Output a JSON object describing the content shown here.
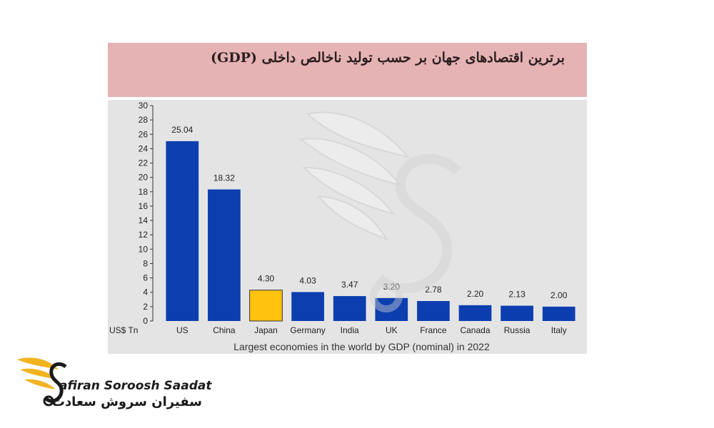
{
  "title": "برترین اقتصادهای جهان بر حسب تولید ناخالص داخلی (GDP)",
  "brand": {
    "name_en": "afiran Soroosh Saadat",
    "name_fa": "سفیران سروش سعادت"
  },
  "colors": {
    "bar": "#0c3eb0",
    "highlight": "#ffc20e",
    "title_band": "#e6b3b5",
    "plot_bg": "#e4e4e4",
    "logo_gold": "#f2b321"
  },
  "chart_data": {
    "type": "bar",
    "categories": [
      "US",
      "China",
      "Japan",
      "Germany",
      "India",
      "UK",
      "France",
      "Canada",
      "Russia",
      "Italy"
    ],
    "values": [
      25.04,
      18.32,
      4.3,
      4.03,
      3.47,
      3.2,
      2.78,
      2.2,
      2.13,
      2.0
    ],
    "value_labels": [
      "25.04",
      "18.32",
      "4.30",
      "4.03",
      "3.47",
      "3.20",
      "2.78",
      "2.20",
      "2.13",
      "2.00"
    ],
    "highlight_category": "Japan",
    "yticks": [
      0,
      2,
      4,
      6,
      8,
      10,
      12,
      14,
      16,
      18,
      20,
      22,
      24,
      26,
      28,
      30
    ],
    "ylim": [
      0,
      30
    ],
    "ylabel": "US$ Tn",
    "xlabel": "Largest economies in the world by GDP (nominal) in 2022",
    "grid": false,
    "legend": "none"
  }
}
